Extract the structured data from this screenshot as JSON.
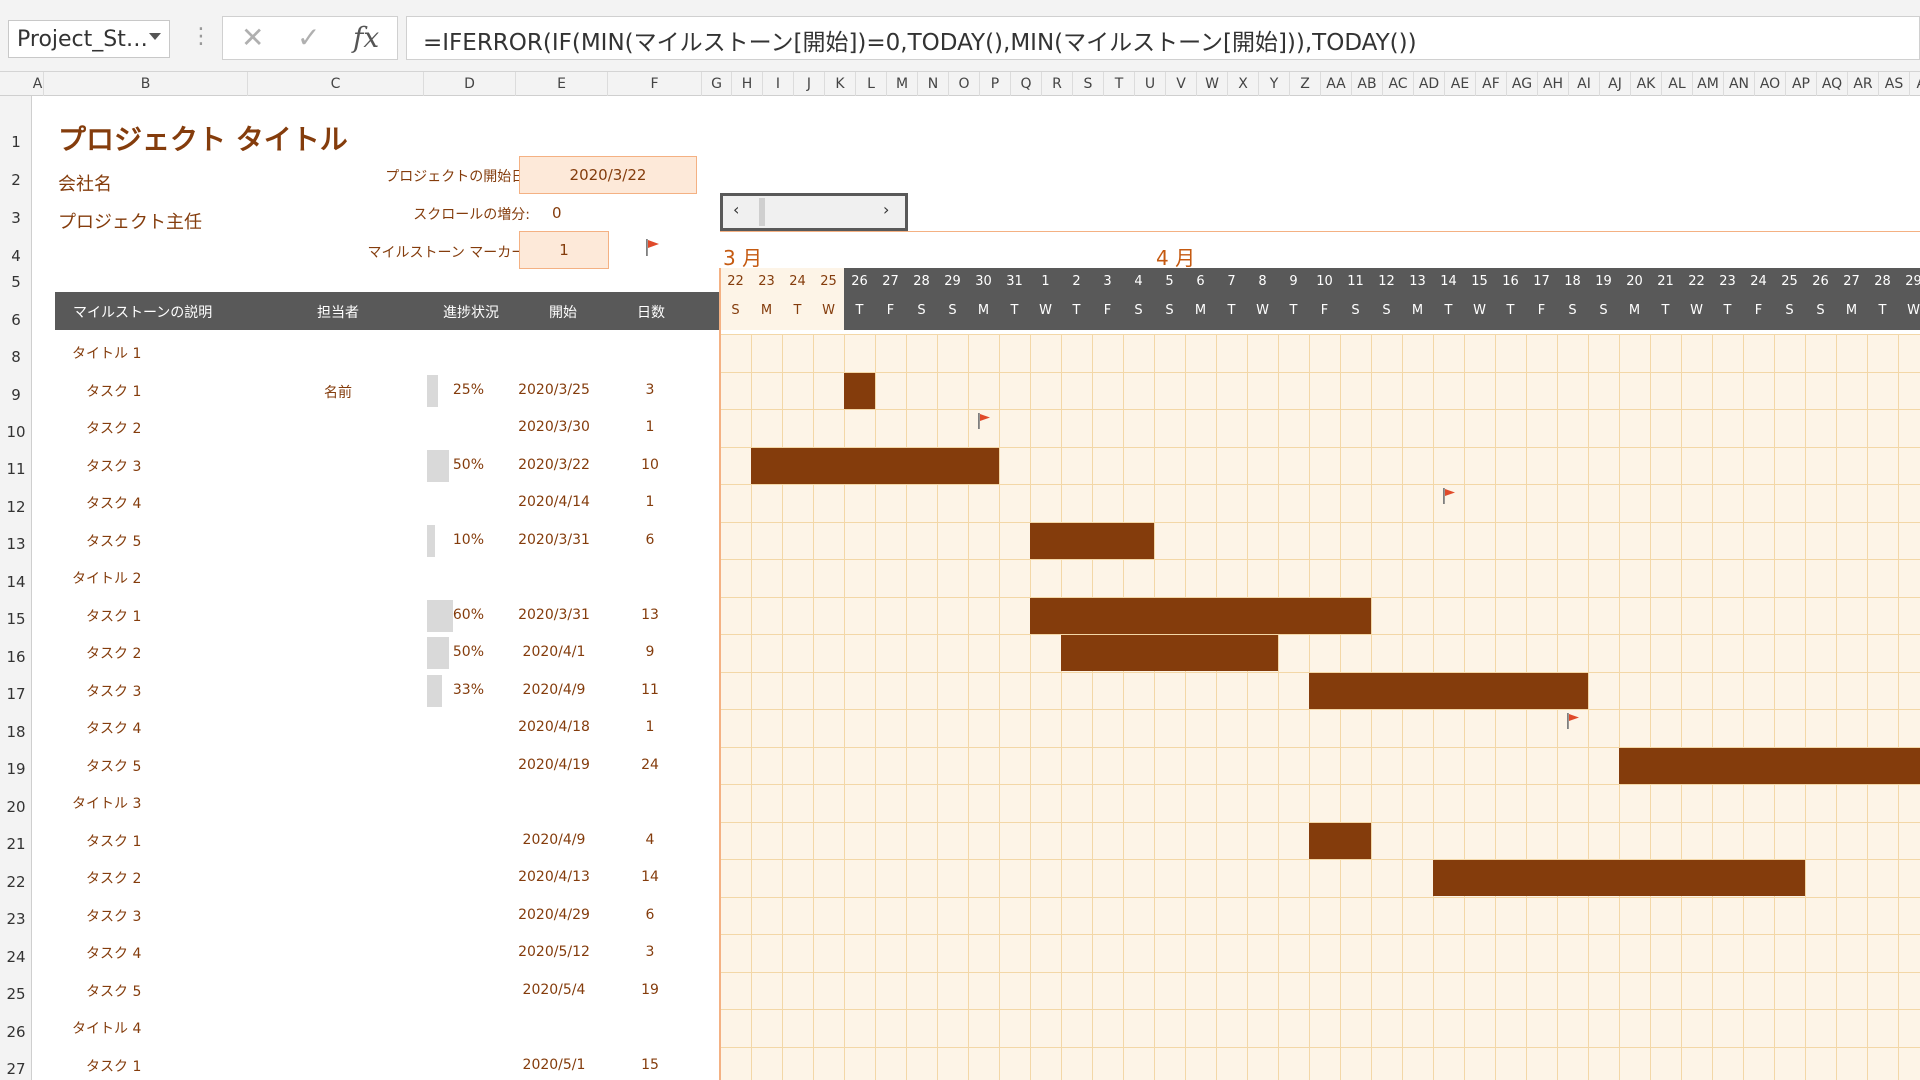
{
  "formula_bar": {
    "name_box": "Project_St…",
    "formula": "=IFERROR(IF(MIN(マイルストーン[開始])=0,TODAY(),MIN(マイルストーン[開始])),TODAY())"
  },
  "col_headers": [
    "A",
    "B",
    "C",
    "D",
    "E",
    "F",
    "G",
    "H",
    "I",
    "J",
    "K",
    "L",
    "M",
    "N",
    "O",
    "P",
    "Q",
    "R",
    "S",
    "T",
    "U",
    "V",
    "W",
    "X",
    "Y",
    "Z",
    "AA",
    "AB",
    "AC",
    "AD",
    "AE",
    "AF",
    "AG",
    "AH",
    "AI",
    "AJ",
    "AK",
    "AL",
    "AM",
    "AN",
    "AO",
    "AP",
    "AQ",
    "AR",
    "AS",
    "AT"
  ],
  "row_headers": [
    "1",
    "2",
    "3",
    "4",
    "5",
    "6",
    "8",
    "9",
    "10",
    "11",
    "12",
    "13",
    "14",
    "15",
    "16",
    "17",
    "18",
    "19",
    "20",
    "21",
    "22",
    "23",
    "24",
    "25",
    "26",
    "27"
  ],
  "sheet": {
    "title": "プロジェクト タイトル",
    "company": "会社名",
    "lead": "プロジェクト主任",
    "start_label": "プロジェクトの開始日:",
    "start_value": "2020/3/22",
    "scroll_label": "スクロールの増分:",
    "scroll_value": "0",
    "marker_label": "マイルストーン マーカー:",
    "marker_value": "1"
  },
  "headers": {
    "desc": "マイルストーンの説明",
    "owner": "担当者",
    "progress": "進捗状況",
    "start": "開始",
    "days": "日数"
  },
  "months": [
    "3 月",
    "4 月"
  ],
  "date_nums": [
    "22",
    "23",
    "24",
    "25",
    "26",
    "27",
    "28",
    "29",
    "30",
    "31",
    "1",
    "2",
    "3",
    "4",
    "5",
    "6",
    "7",
    "8",
    "9",
    "10",
    "11",
    "12",
    "13",
    "14",
    "15",
    "16",
    "17",
    "18",
    "19",
    "20",
    "21",
    "22",
    "23",
    "24",
    "25",
    "26",
    "27",
    "28",
    "29"
  ],
  "day_letters": [
    "S",
    "M",
    "T",
    "W",
    "T",
    "F",
    "S",
    "S",
    "M",
    "T",
    "W",
    "T",
    "F",
    "S",
    "S",
    "M",
    "T",
    "W",
    "T",
    "F",
    "S",
    "S",
    "M",
    "T",
    "W",
    "T",
    "F",
    "S",
    "S",
    "M",
    "T",
    "W",
    "T",
    "F",
    "S",
    "S",
    "M",
    "T",
    "W"
  ],
  "rows": [
    {
      "label": "タイトル 1",
      "type": "title"
    },
    {
      "label": "タスク 1",
      "owner": "名前",
      "progress": "25%",
      "progress_frac": 0.25,
      "start": "2020/3/25",
      "days": "3",
      "bar": [
        4,
        1
      ]
    },
    {
      "label": "タスク 2",
      "start": "2020/3/30",
      "days": "1",
      "flag": 8
    },
    {
      "label": "タスク 3",
      "progress": "50%",
      "progress_frac": 0.5,
      "start": "2020/3/22",
      "days": "10",
      "bar": [
        1,
        8
      ]
    },
    {
      "label": "タスク 4",
      "start": "2020/4/14",
      "days": "1",
      "flag": 23
    },
    {
      "label": "タスク 5",
      "progress": "10%",
      "progress_frac": 0.1,
      "start": "2020/3/31",
      "days": "6",
      "bar": [
        10,
        4
      ]
    },
    {
      "label": "タイトル 2",
      "type": "title"
    },
    {
      "label": "タスク 1",
      "progress": "60%",
      "progress_frac": 0.6,
      "start": "2020/3/31",
      "days": "13",
      "bar": [
        10,
        11
      ]
    },
    {
      "label": "タスク 2",
      "progress": "50%",
      "progress_frac": 0.5,
      "start": "2020/4/1",
      "days": "9",
      "bar": [
        11,
        7
      ]
    },
    {
      "label": "タスク 3",
      "progress": "33%",
      "progress_frac": 0.33,
      "start": "2020/4/9",
      "days": "11",
      "bar": [
        19,
        9
      ]
    },
    {
      "label": "タスク 4",
      "start": "2020/4/18",
      "days": "1",
      "flag": 27
    },
    {
      "label": "タスク 5",
      "start": "2020/4/19",
      "days": "24",
      "bar": [
        29,
        10
      ]
    },
    {
      "label": "タイトル 3",
      "type": "title"
    },
    {
      "label": "タスク 1",
      "start": "2020/4/9",
      "days": "4",
      "bar": [
        19,
        2
      ]
    },
    {
      "label": "タスク 2",
      "start": "2020/4/13",
      "days": "14",
      "bar": [
        23,
        12
      ]
    },
    {
      "label": "タスク 3",
      "start": "2020/4/29",
      "days": "6"
    },
    {
      "label": "タスク 4",
      "start": "2020/5/12",
      "days": "3"
    },
    {
      "label": "タスク 5",
      "start": "2020/5/4",
      "days": "19"
    },
    {
      "label": "タイトル 4",
      "type": "title"
    },
    {
      "label": "タスク 1",
      "start": "2020/5/1",
      "days": "15"
    }
  ],
  "colors": {
    "accent": "#843c0c",
    "header_band": "#595959",
    "grid_bg": "#fdf4e7",
    "input_bg": "#fde9d9",
    "weekend_fill": "#ffffff"
  }
}
